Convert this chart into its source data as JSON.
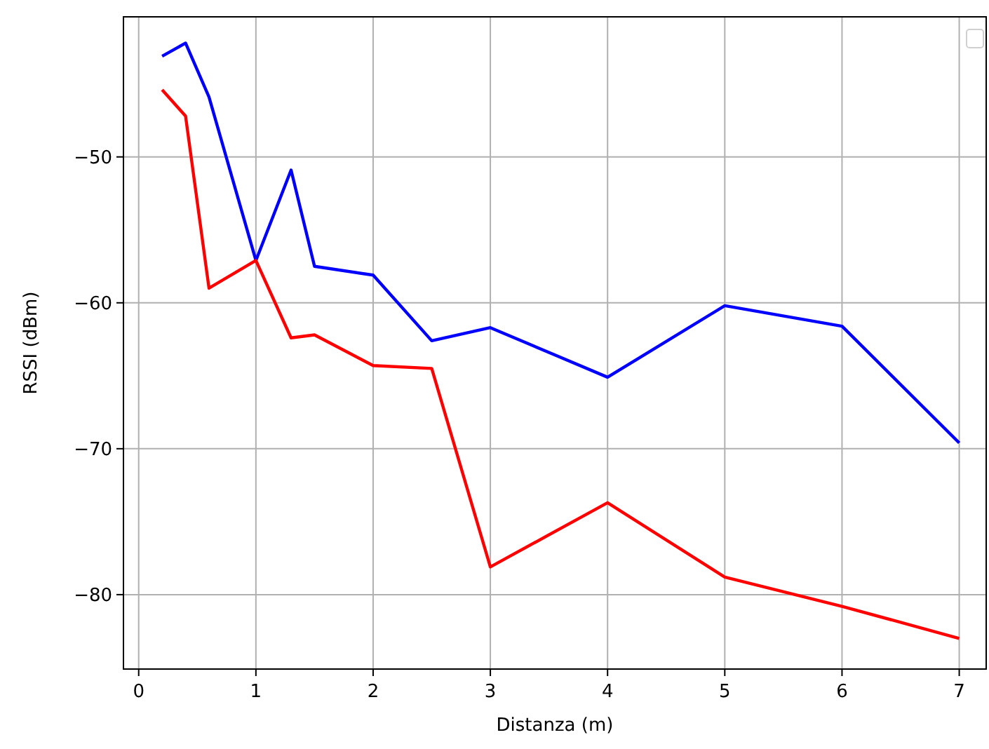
{
  "chart_data": {
    "type": "line",
    "xlabel": "Distanza (m)",
    "ylabel": "RSSI (dBm)",
    "xlim": [
      -0.13,
      7.23
    ],
    "xticks": [
      0,
      1,
      2,
      3,
      4,
      5,
      6,
      7
    ],
    "ylim": [
      -85.1,
      -40.4
    ],
    "yticks": [
      -50,
      -60,
      -70,
      -80
    ],
    "grid": true,
    "series": [
      {
        "color": "#0000ff",
        "x": [
          0.2,
          0.4,
          0.6,
          1,
          1.3,
          1.5,
          2,
          2.5,
          3,
          4,
          5,
          6,
          7
        ],
        "values": [
          -43.1,
          -42.2,
          -45.9,
          -57.1,
          -50.9,
          -57.5,
          -58.1,
          -62.6,
          -61.7,
          -65.1,
          -60.2,
          -61.6,
          -69.6
        ]
      },
      {
        "color": "#ff0000",
        "x": [
          0.2,
          0.4,
          0.6,
          1,
          1.3,
          1.5,
          2,
          2.5,
          3,
          4,
          5,
          6,
          7
        ],
        "values": [
          -45.4,
          -47.2,
          -59.0,
          -57.1,
          -62.4,
          -62.2,
          -64.3,
          -64.5,
          -78.1,
          -73.7,
          -78.8,
          -80.8,
          -83.0
        ]
      }
    ]
  }
}
